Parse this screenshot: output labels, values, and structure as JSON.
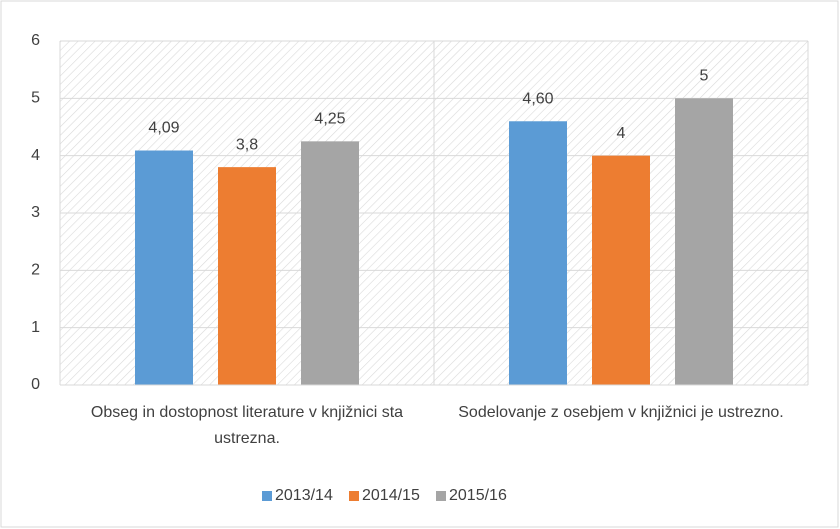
{
  "chart_data": {
    "type": "bar",
    "categories": [
      "Obseg in dostopnost literature v knjižnici sta ustrezna.",
      "Sodelovanje z osebjem v knjižnici je ustrezno."
    ],
    "series": [
      {
        "name": "2013/14",
        "color": "#5b9bd5",
        "values": [
          4.09,
          4.6
        ],
        "value_labels": [
          "4,09",
          "4,60"
        ]
      },
      {
        "name": "2014/15",
        "color": "#ed7d31",
        "values": [
          3.8,
          4
        ],
        "value_labels": [
          "3,8",
          "4"
        ]
      },
      {
        "name": "2015/16",
        "color": "#a5a5a5",
        "values": [
          4.25,
          5
        ],
        "value_labels": [
          "4,25",
          "5"
        ]
      }
    ],
    "ylim": [
      0,
      6
    ],
    "yticks": [
      0,
      1,
      2,
      3,
      4,
      5,
      6
    ],
    "grid": true,
    "legend": "bottom"
  }
}
